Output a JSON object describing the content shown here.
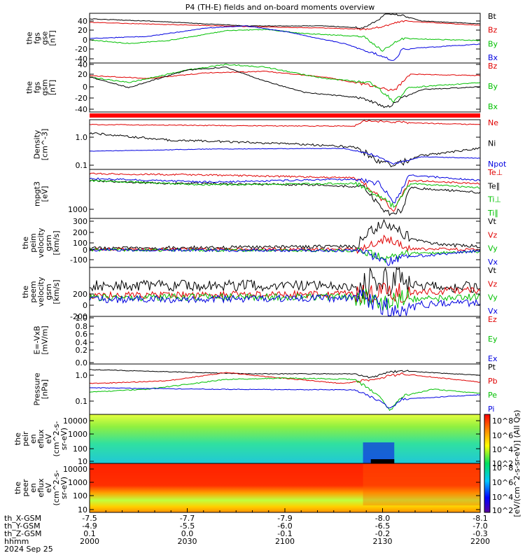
{
  "title": "P4 (TH-E) fields and on-board moments overview",
  "colors": {
    "black": "#000000",
    "red": "#e00000",
    "green": "#00c000",
    "blue": "#0000e0",
    "bar": "#ff0000"
  },
  "panels": [
    {
      "id": "fgs_gse",
      "ylabel": [
        "the",
        "fgs",
        "gse",
        "[nT]"
      ],
      "yticks": [
        "40",
        "20",
        "0",
        "-20",
        "-40"
      ],
      "legend": [
        {
          "text": "Bt",
          "color": "#000000"
        },
        {
          "text": "Bz",
          "color": "#e00000"
        },
        {
          "text": "By",
          "color": "#00c000"
        },
        {
          "text": "Bx",
          "color": "#0000e0"
        }
      ]
    },
    {
      "id": "fgs_gsm",
      "ylabel": [
        "the",
        "fgs",
        "gsm",
        "[nT]"
      ],
      "yticks": [
        "40",
        "20",
        "0",
        "-20",
        "-40"
      ],
      "legend": [
        {
          "text": "Bz",
          "color": "#e00000"
        },
        {
          "text": "By",
          "color": "#00c000"
        },
        {
          "text": "Bx",
          "color": "#00c000"
        }
      ]
    },
    {
      "id": "density",
      "ylabel": [
        "Density",
        "[cm^-3]"
      ],
      "yticks": [
        "1.0",
        "0.1"
      ],
      "legend": [
        {
          "text": "Ne",
          "color": "#e00000"
        },
        {
          "text": "Ni",
          "color": "#000000"
        },
        {
          "text": "Npot",
          "color": "#0000e0"
        }
      ]
    },
    {
      "id": "temp",
      "ylabel": [
        "mpgt3",
        "[eV]"
      ],
      "yticks": [
        "1000"
      ],
      "legend": [
        {
          "text": "Te⊥",
          "color": "#e00000"
        },
        {
          "text": "Te∥",
          "color": "#000000"
        },
        {
          "text": "Ti⊥",
          "color": "#00c000"
        },
        {
          "text": "Ti∥",
          "color": "#00c000"
        }
      ]
    },
    {
      "id": "peim",
      "ylabel": [
        "the",
        "peim",
        "velocity",
        "gsm",
        "[km/s]"
      ],
      "yticks": [
        "300",
        "200",
        "100",
        "0",
        "-100"
      ],
      "legend": [
        {
          "text": "Vt",
          "color": "#000000"
        },
        {
          "text": "Vz",
          "color": "#e00000"
        },
        {
          "text": "Vy",
          "color": "#00c000"
        },
        {
          "text": "Vx",
          "color": "#0000e0"
        }
      ]
    },
    {
      "id": "peem",
      "ylabel": [
        "the",
        "peem",
        "velocity",
        "gsm",
        "[km/s]"
      ],
      "yticks": [
        "200",
        "0",
        "-200"
      ],
      "legend": [
        {
          "text": "Vt",
          "color": "#000000"
        },
        {
          "text": "Vz",
          "color": "#e00000"
        },
        {
          "text": "Vy",
          "color": "#00c000"
        },
        {
          "text": "Vx",
          "color": "#0000e0"
        }
      ]
    },
    {
      "id": "efield",
      "ylabel": [
        "E=-VxB",
        "[mV/m]"
      ],
      "yticks": [
        "1.0",
        "0.8",
        "0.6",
        "0.4",
        "0.2",
        "0.0"
      ],
      "legend": [
        {
          "text": "Ez",
          "color": "#e00000"
        },
        {
          "text": "Ey",
          "color": "#00c000"
        },
        {
          "text": "Ex",
          "color": "#0000e0"
        }
      ]
    },
    {
      "id": "pressure",
      "ylabel": [
        "Pressure",
        "[nPa]"
      ],
      "yticks": [
        "1.0",
        "0.1"
      ],
      "legend": [
        {
          "text": "Pt",
          "color": "#000000"
        },
        {
          "text": "Pb",
          "color": "#e00000"
        },
        {
          "text": "Pe",
          "color": "#00c000"
        },
        {
          "text": "Pi",
          "color": "#0000e0"
        }
      ]
    },
    {
      "id": "peir",
      "ylabel": [
        "the",
        "peir",
        "en",
        "eflux",
        "eV",
        "(cm^2-s-",
        "sr-eV)"
      ],
      "yticks": [
        "10000",
        "1000",
        "100",
        "10"
      ],
      "legend": []
    },
    {
      "id": "peer",
      "ylabel": [
        "the",
        "peer",
        "en",
        "eflux",
        "eV",
        "(cm^2-s-",
        "sr-eV)"
      ],
      "yticks": [
        "10000",
        "1000",
        "100",
        "10"
      ],
      "legend": []
    }
  ],
  "colorbar": {
    "labels_top": [
      "10^8",
      "10^6",
      "10^4",
      "10^2"
    ],
    "labels_bottom": [
      "10^8",
      "10^6",
      "10^4",
      "10^2"
    ],
    "units": "[eV/(cm^2-s-sr-eV)] (All Qs)"
  },
  "xaxis": {
    "row_labels": [
      "th_X-GSM",
      "th_Y-GSM",
      "th_Z-GSM",
      "hhmm",
      "2024 Sep 25"
    ],
    "ticks": [
      {
        "x": "-7.5",
        "y": "-4.9",
        "z": "0.1",
        "t": "2000"
      },
      {
        "x": "-7.7",
        "y": "-5.5",
        "z": "0.0",
        "t": "2030"
      },
      {
        "x": "-7.9",
        "y": "-6.0",
        "z": "-0.1",
        "t": "2100"
      },
      {
        "x": "-8.0",
        "y": "-6.5",
        "z": "-0.2",
        "t": "2130"
      },
      {
        "x": "-8.1",
        "y": "-7.0",
        "z": "-0.3",
        "t": "2200"
      }
    ]
  },
  "chart_data": {
    "type": "line",
    "title": "P4 (TH-E) fields and on-board moments overview",
    "x": [
      "2000",
      "2030",
      "2100",
      "2130",
      "2200"
    ],
    "panels": [
      {
        "name": "the_fgs_gse",
        "ylim": [
          -50,
          55
        ],
        "series": [
          {
            "name": "Bt",
            "values": [
              45,
              42,
              35,
              50,
              33
            ]
          },
          {
            "name": "Bz",
            "values": [
              42,
              38,
              33,
              28,
              32
            ]
          },
          {
            "name": "By",
            "values": [
              5,
              15,
              22,
              -5,
              0
            ]
          },
          {
            "name": "Bx",
            "values": [
              0,
              10,
              25,
              -30,
              -5
            ]
          }
        ]
      },
      {
        "name": "the_fgs_gsm",
        "ylim": [
          -50,
          45
        ],
        "series": [
          {
            "name": "Bz",
            "values": [
              22,
              25,
              22,
              5,
              20
            ]
          },
          {
            "name": "By",
            "values": [
              10,
              30,
              35,
              -20,
              5
            ]
          },
          {
            "name": "Bx",
            "values": [
              -5,
              0,
              20,
              -45,
              -10
            ]
          }
        ]
      },
      {
        "name": "Density",
        "ylim": [
          0.1,
          2.0
        ],
        "log": true,
        "series": [
          {
            "name": "Ne",
            "values": [
              1.6,
              1.4,
              1.3,
              1.8,
              1.7
            ]
          },
          {
            "name": "Ni",
            "values": [
              1.0,
              0.6,
              0.5,
              0.14,
              0.3
            ]
          },
          {
            "name": "Npot",
            "values": [
              0.3,
              0.32,
              0.33,
              0.13,
              0.2
            ]
          }
        ]
      },
      {
        "name": "Temperature",
        "log": true,
        "series": [
          {
            "name": "Te⊥",
            "values": [
              5500,
              6000,
              6500,
              2000,
              4500
            ]
          },
          {
            "name": "Te∥",
            "values": [
              3500,
              4000,
              4500,
              900,
              2500
            ]
          },
          {
            "name": "Ti⊥",
            "values": [
              4200,
              4000,
              4200,
              1500,
              3500
            ]
          },
          {
            "name": "Ti∥",
            "values": [
              3800,
              3800,
              4000,
              1200,
              3200
            ]
          }
        ]
      },
      {
        "name": "the_peim_velocity_gsm",
        "ylim": [
          -150,
          320
        ],
        "series": [
          {
            "name": "Vt",
            "values": [
              20,
              20,
              25,
              250,
              40
            ]
          },
          {
            "name": "Vz",
            "values": [
              0,
              5,
              5,
              50,
              10
            ]
          },
          {
            "name": "Vy",
            "values": [
              0,
              0,
              5,
              -80,
              -10
            ]
          },
          {
            "name": "Vx",
            "values": [
              0,
              0,
              0,
              -100,
              0
            ]
          }
        ]
      },
      {
        "name": "the_peem_velocity_gsm",
        "ylim": [
          -300,
          300
        ],
        "series": [
          {
            "name": "Vt",
            "values": [
              100,
              100,
              100,
              200,
              80
            ]
          },
          {
            "name": "Vz",
            "values": [
              -50,
              -30,
              -40,
              50,
              20
            ]
          },
          {
            "name": "Vy",
            "values": [
              -50,
              -50,
              -40,
              0,
              0
            ]
          },
          {
            "name": "Vx",
            "values": [
              -20,
              -20,
              -20,
              -200,
              -50
            ]
          }
        ]
      },
      {
        "name": "E=-VxB",
        "ylim": [
          0,
          1
        ],
        "series": []
      },
      {
        "name": "Pressure",
        "log": true,
        "series": [
          {
            "name": "Pt",
            "values": [
              1.0,
              1.0,
              0.95,
              1.1,
              0.9
            ]
          },
          {
            "name": "Pb",
            "values": [
              0.6,
              0.5,
              1.0,
              0.8,
              0.7
            ]
          },
          {
            "name": "Pe",
            "values": [
              0.2,
              0.4,
              0.55,
              0.04,
              0.3
            ]
          },
          {
            "name": "Pi",
            "values": [
              0.3,
              0.3,
              0.35,
              0.04,
              0.15
            ]
          }
        ]
      }
    ]
  }
}
